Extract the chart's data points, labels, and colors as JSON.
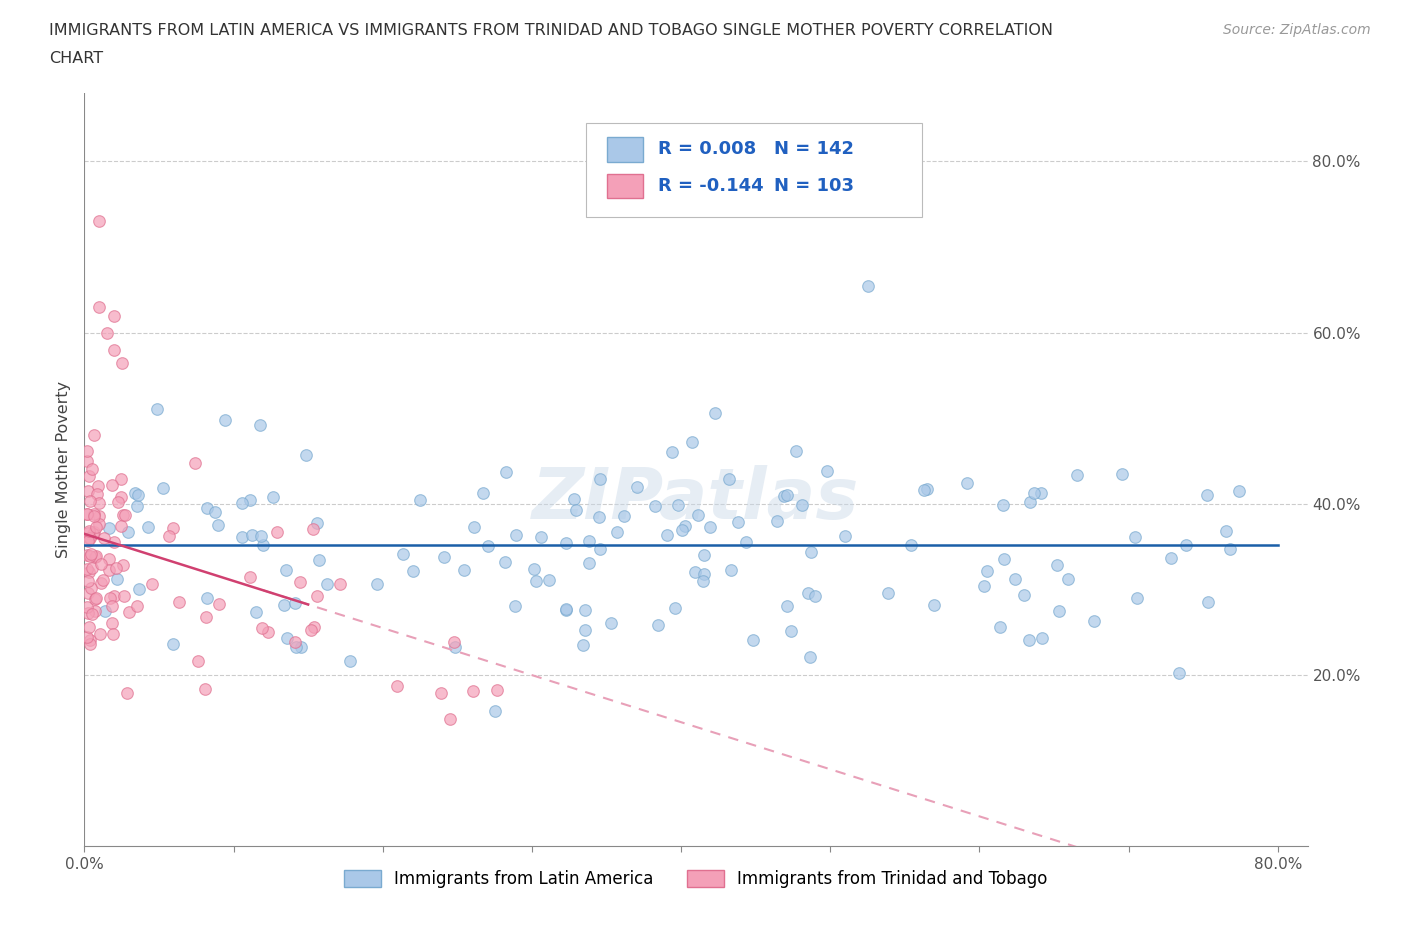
{
  "title_line1": "IMMIGRANTS FROM LATIN AMERICA VS IMMIGRANTS FROM TRINIDAD AND TOBAGO SINGLE MOTHER POVERTY CORRELATION",
  "title_line2": "CHART",
  "source_text": "Source: ZipAtlas.com",
  "ylabel": "Single Mother Poverty",
  "xlim": [
    0.0,
    0.82
  ],
  "ylim": [
    0.0,
    0.88
  ],
  "blue_scatter_color": "#aac8e8",
  "blue_edge_color": "#7aaad0",
  "pink_scatter_color": "#f4a0b8",
  "pink_edge_color": "#e07090",
  "blue_trend_color": "#1a5fa8",
  "pink_trend_solid_color": "#d04070",
  "pink_trend_dash_color": "#e8a0b8",
  "legend_text_color": "#2060c0",
  "legend_R1": "R = 0.008",
  "legend_N1": "N = 142",
  "legend_R2": "R = -0.144",
  "legend_N2": "N = 103",
  "watermark": "ZIPatlas",
  "blue_label": "Immigrants from Latin America",
  "pink_label": "Immigrants from Trinidad and Tobago",
  "grid_color": "#cccccc",
  "axis_color": "#888888",
  "text_color": "#555555"
}
